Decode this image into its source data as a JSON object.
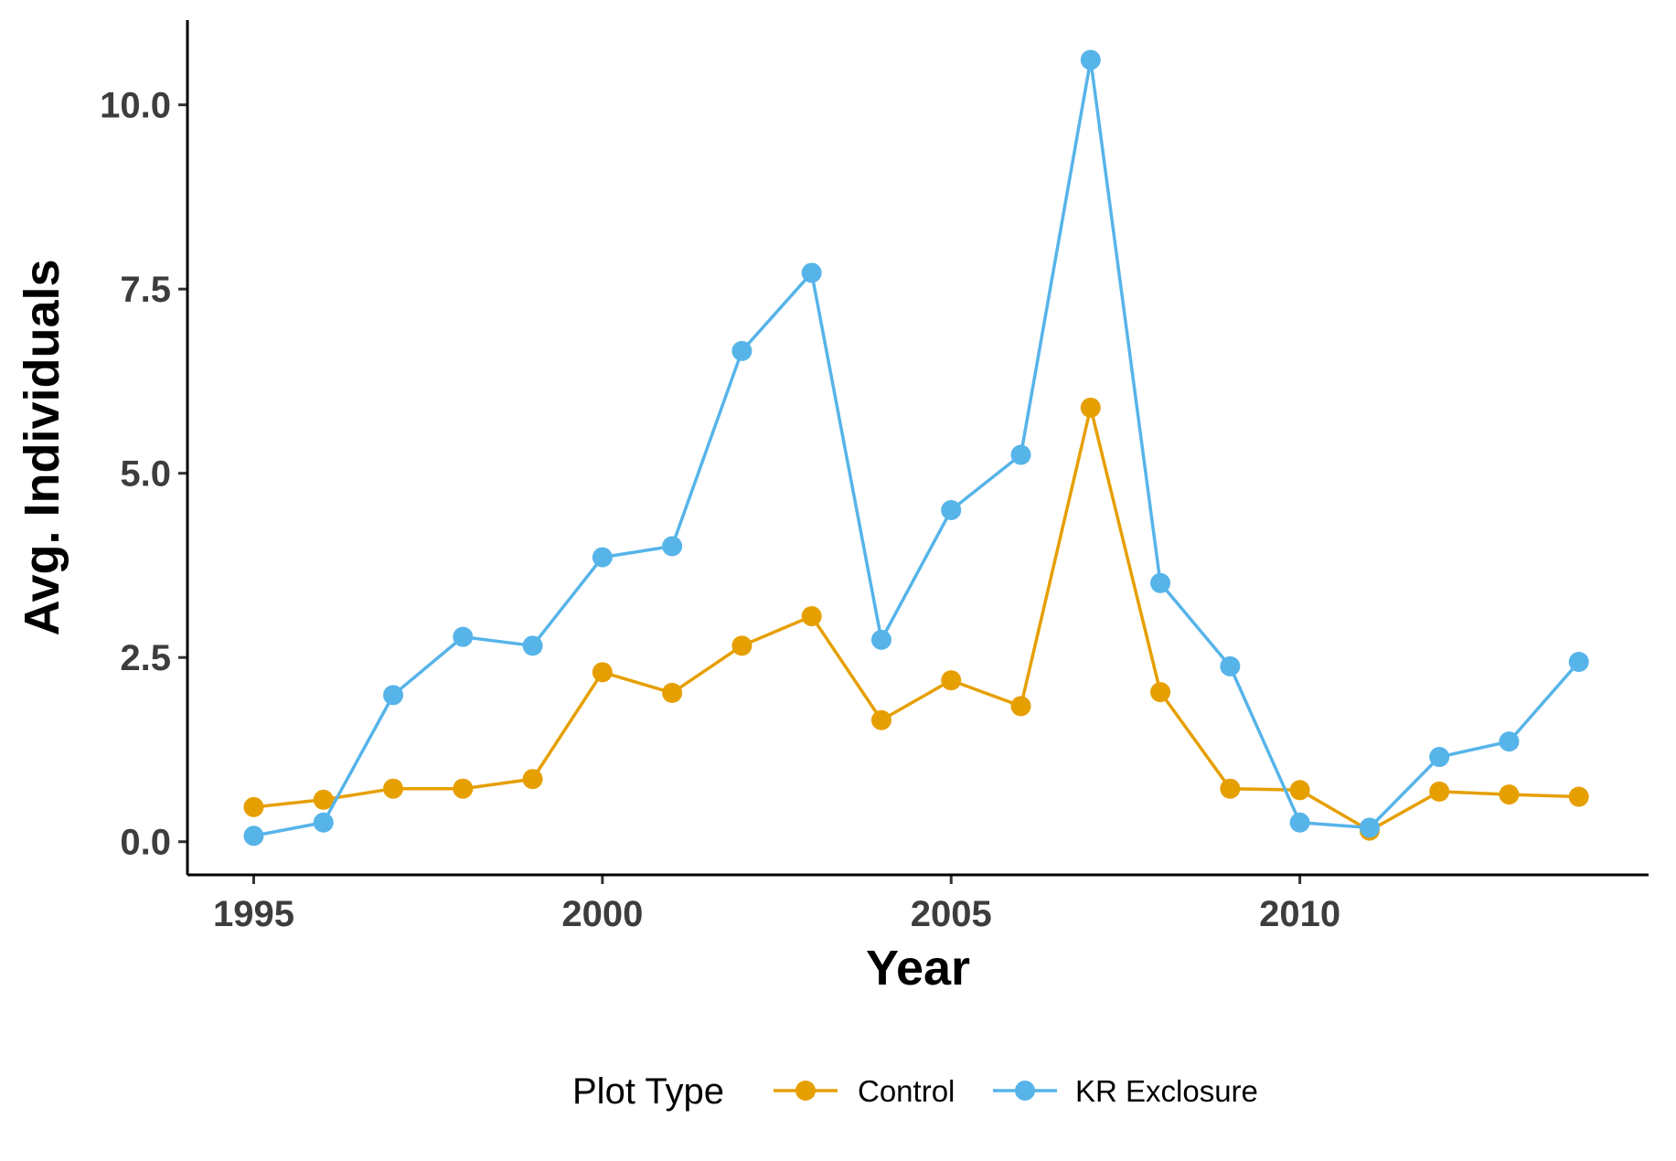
{
  "chart_data": {
    "type": "line",
    "title": "",
    "xlabel": "Year",
    "ylabel": "Avg. Individuals",
    "x_ticks": [
      1995,
      2000,
      2005,
      2010
    ],
    "x_tick_labels": [
      "1995",
      "2000",
      "2005",
      "2010"
    ],
    "y_ticks": [
      0,
      2.5,
      5,
      7.5,
      10
    ],
    "y_tick_labels": [
      "0.0",
      "2.5",
      "5.0",
      "7.5",
      "10.0"
    ],
    "xlim": [
      1994.05,
      2015.0
    ],
    "ylim": [
      -0.45,
      11.15
    ],
    "grid": false,
    "legend": {
      "position": "bottom",
      "title": "Plot Type"
    },
    "x": [
      1995,
      1996,
      1997,
      1998,
      1999,
      2000,
      2001,
      2002,
      2003,
      2004,
      2005,
      2006,
      2007,
      2008,
      2009,
      2010,
      2011,
      2012,
      2013,
      2014
    ],
    "series": [
      {
        "name": "Control",
        "color": "#E69F00",
        "values": [
          0.47,
          0.57,
          0.72,
          0.72,
          0.85,
          2.3,
          2.02,
          2.66,
          3.06,
          1.65,
          2.19,
          1.84,
          5.89,
          2.03,
          0.72,
          0.7,
          0.15,
          0.68,
          0.64,
          0.61
        ]
      },
      {
        "name": "KR Exclosure",
        "color": "#56B4E9",
        "values": [
          0.08,
          0.26,
          1.99,
          2.78,
          2.66,
          3.86,
          4.01,
          6.66,
          7.72,
          2.74,
          4.5,
          5.25,
          10.61,
          3.51,
          2.38,
          0.26,
          0.19,
          1.15,
          1.36,
          2.44
        ]
      }
    ]
  }
}
